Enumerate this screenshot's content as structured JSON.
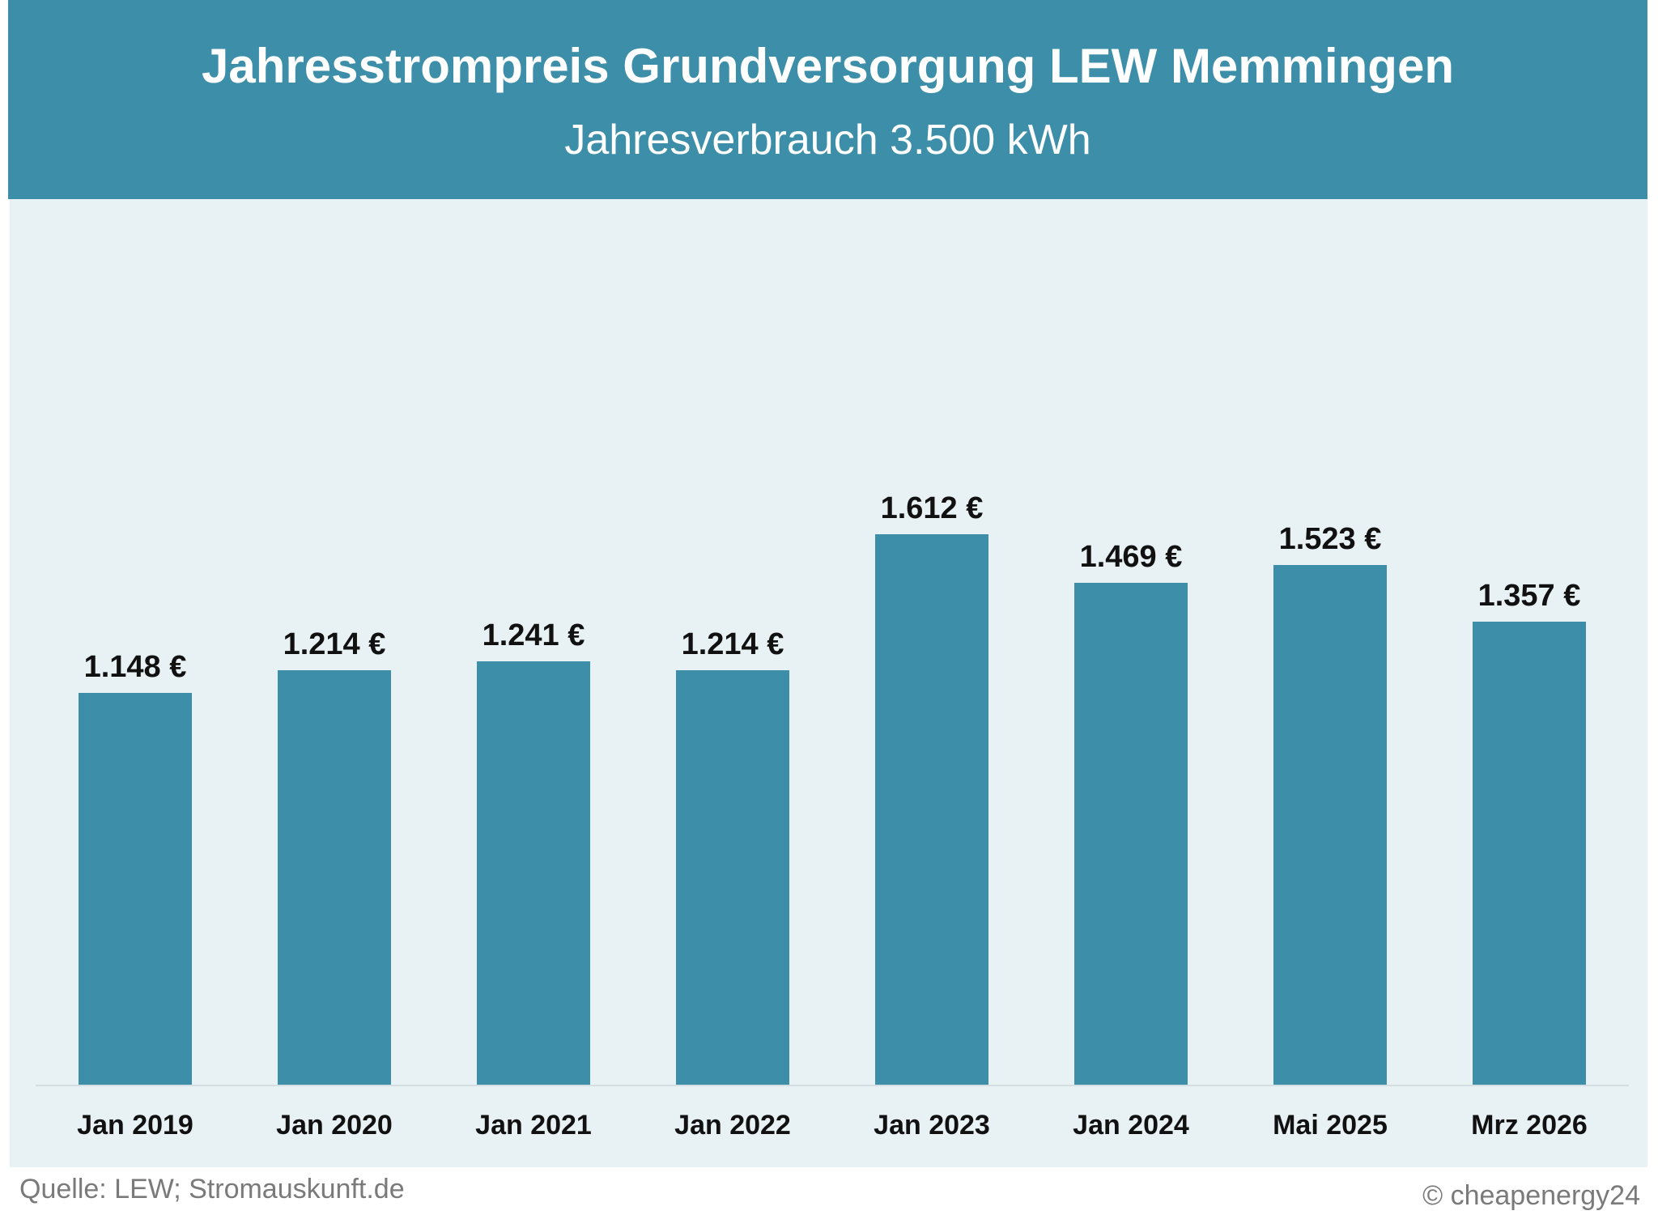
{
  "header": {
    "title": "Jahresstrompreis Grundversorgung LEW Memmingen",
    "subtitle": "Jahresverbrauch 3.500 kWh"
  },
  "footer": {
    "source": "Quelle: LEW; Stromauskunft.de",
    "copyright": "© cheapenergy24"
  },
  "colors": {
    "bar": "#3d8ea8",
    "header_bg": "#3d8ea8",
    "panel_bg": "#e8f1f4"
  },
  "bars": [
    {
      "category": "Jan 2019",
      "label": "1.148 €"
    },
    {
      "category": "Jan 2020",
      "label": "1.214 €"
    },
    {
      "category": "Jan 2021",
      "label": "1.241 €"
    },
    {
      "category": "Jan 2022",
      "label": "1.214 €"
    },
    {
      "category": "Jan 2023",
      "label": "1.612 €"
    },
    {
      "category": "Jan 2024",
      "label": "1.469 €"
    },
    {
      "category": "Mai 2025",
      "label": "1.523 €"
    },
    {
      "category": "Mrz 2026",
      "label": "1.357 €"
    }
  ],
  "chart_data": {
    "type": "bar",
    "title": "Jahresstrompreis Grundversorgung LEW Memmingen",
    "subtitle": "Jahresverbrauch 3.500 kWh",
    "categories": [
      "Jan 2019",
      "Jan 2020",
      "Jan 2021",
      "Jan 2022",
      "Jan 2023",
      "Jan 2024",
      "Mai 2025",
      "Mrz 2026"
    ],
    "values": [
      1148,
      1214,
      1241,
      1214,
      1612,
      1469,
      1523,
      1357
    ],
    "unit": "€",
    "xlabel": "",
    "ylabel": "",
    "ylim": [
      0,
      1800
    ],
    "grid": false,
    "legend": null,
    "annotations": [
      "Quelle: LEW; Stromauskunft.de",
      "© cheapenergy24"
    ]
  }
}
